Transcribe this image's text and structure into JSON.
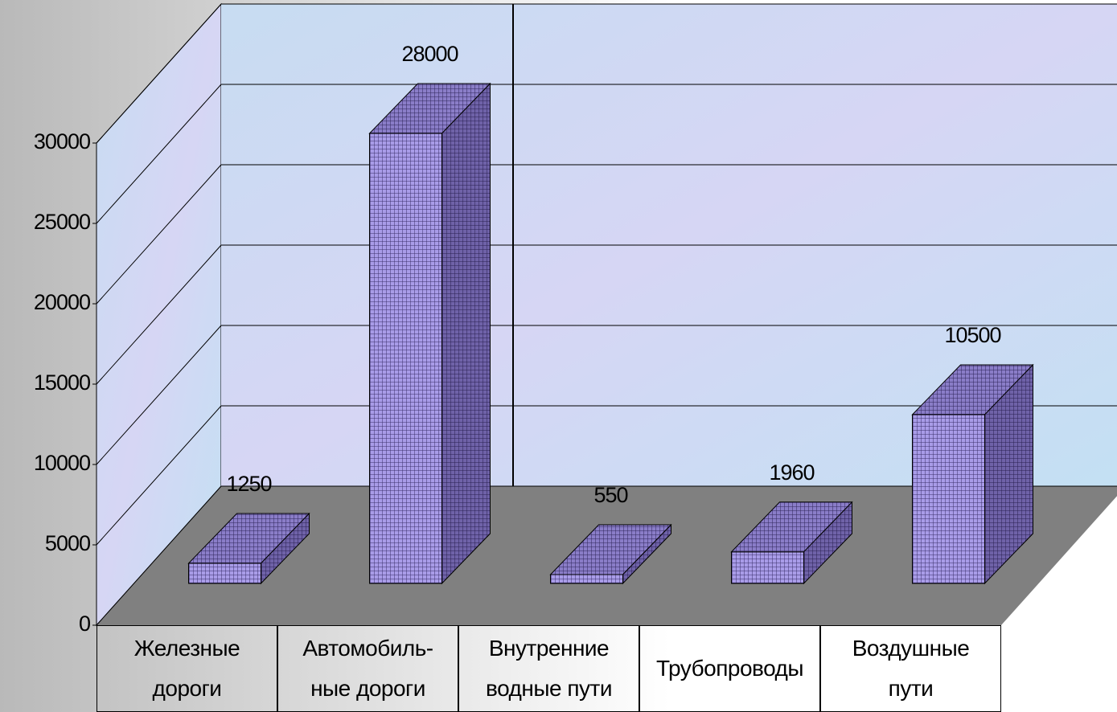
{
  "chart_data": {
    "type": "bar3d",
    "categories": [
      "Железные дороги",
      "Автомобиль-ные дороги",
      "Внутренние водные пути",
      "Трубопроводы",
      "Воздушные пути"
    ],
    "values": [
      1250,
      28000,
      550,
      1960,
      10500
    ],
    "color": "#9a8ee0",
    "ylim": [
      0,
      30000
    ],
    "yticks": [
      0,
      5000,
      10000,
      15000,
      20000,
      25000,
      30000
    ],
    "grid": true
  }
}
